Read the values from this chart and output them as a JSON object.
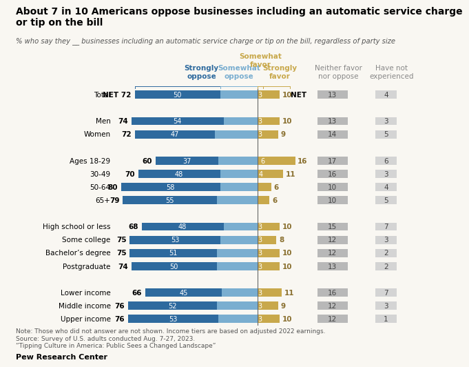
{
  "title": "About 7 in 10 Americans oppose businesses including an automatic service charge\nor tip on the bill",
  "subtitle": "% who say they __ businesses including an automatic service charge or tip on the bill, regardless of party size",
  "categories": [
    "Total",
    "",
    "Men",
    "Women",
    "",
    "Ages 18-29",
    "30-49",
    "50-64",
    "65+",
    "",
    "High school or less",
    "Some college",
    "Bachelor’s degree",
    "Postgraduate",
    "",
    "Lower income",
    "Middle income",
    "Upper income"
  ],
  "strongly_oppose": [
    50,
    null,
    54,
    47,
    null,
    37,
    48,
    58,
    55,
    null,
    48,
    53,
    51,
    50,
    null,
    45,
    52,
    53
  ],
  "somewhat_oppose": [
    22,
    null,
    20,
    25,
    null,
    23,
    22,
    22,
    24,
    null,
    20,
    22,
    24,
    24,
    null,
    21,
    24,
    23
  ],
  "somewhat_favor": [
    3,
    null,
    3,
    3,
    null,
    6,
    4,
    2,
    1,
    null,
    3,
    3,
    3,
    3,
    null,
    3,
    3,
    3
  ],
  "strongly_favor": [
    10,
    null,
    10,
    9,
    null,
    16,
    11,
    6,
    6,
    null,
    10,
    8,
    10,
    10,
    null,
    11,
    9,
    10
  ],
  "neither": [
    13,
    null,
    13,
    14,
    null,
    17,
    16,
    10,
    10,
    null,
    15,
    12,
    12,
    13,
    null,
    16,
    12,
    12
  ],
  "not_experienced": [
    4,
    null,
    3,
    5,
    null,
    6,
    3,
    4,
    5,
    null,
    7,
    3,
    2,
    2,
    null,
    7,
    3,
    1
  ],
  "net_oppose": [
    72,
    null,
    74,
    72,
    null,
    60,
    70,
    80,
    79,
    null,
    68,
    75,
    75,
    74,
    null,
    66,
    76,
    76
  ],
  "is_total": [
    true,
    false,
    false,
    false,
    false,
    false,
    false,
    false,
    false,
    false,
    false,
    false,
    false,
    false,
    false,
    false,
    false,
    false
  ],
  "colors": {
    "strongly_oppose": "#2e6a9e",
    "somewhat_oppose": "#7aaed0",
    "somewhat_favor": "#c8a84b",
    "strongly_favor": "#c8a84b",
    "neither": "#b8b8b8",
    "not_experienced": "#d4d4d4",
    "background": "#f9f7f2"
  },
  "note": "Note: Those who did not answer are not shown. Income tiers are based on adjusted 2022 earnings.\nSource: Survey of U.S. adults conducted Aug. 7-27, 2023.\n“Tipping Culture in America: Public Sees a Changed Landscape”",
  "source": "Pew Research Center"
}
